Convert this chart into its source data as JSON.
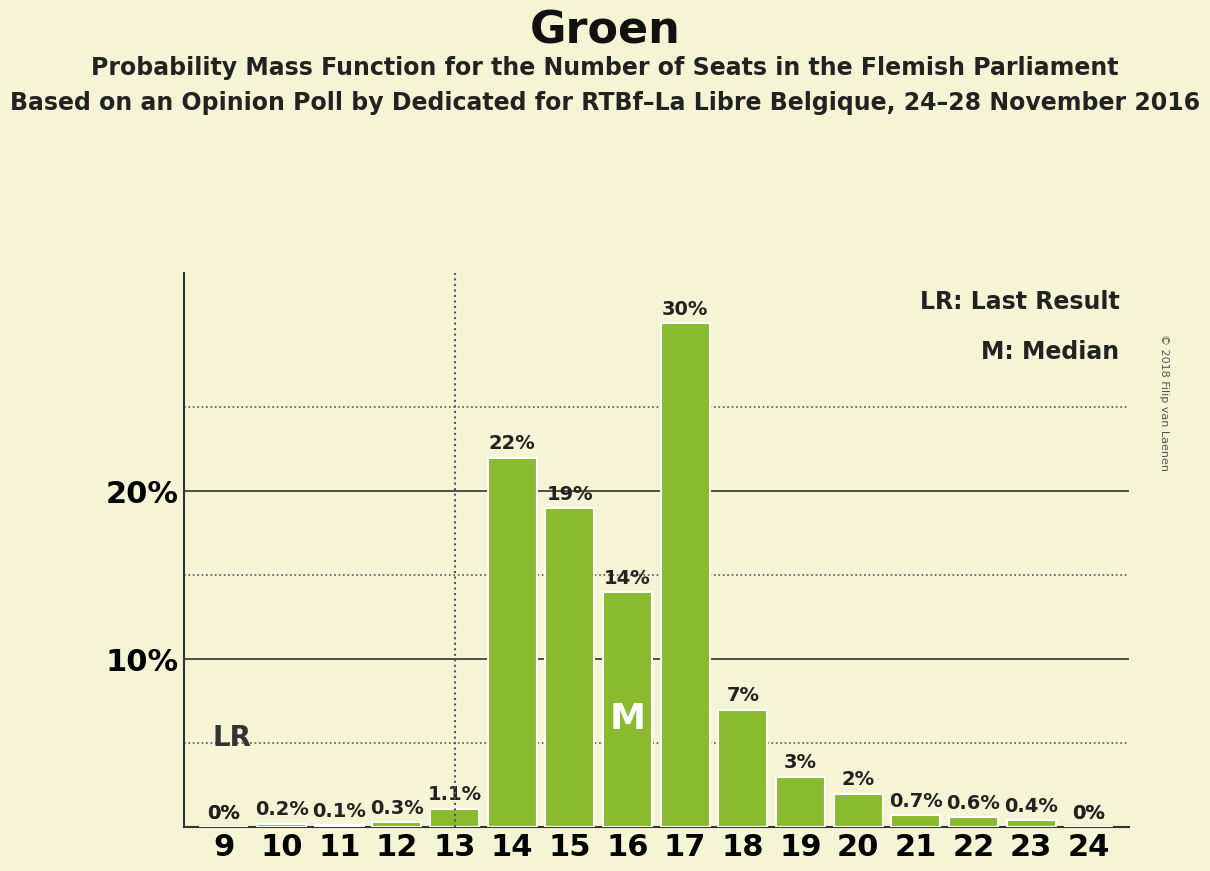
{
  "title": "Groen",
  "subtitle1": "Probability Mass Function for the Number of Seats in the Flemish Parliament",
  "subtitle2": "Based on an Opinion Poll by Dedicated for RTBf–La Libre Belgique, 24–28 November 2016",
  "copyright": "© 2018 Filip van Laenen",
  "seats": [
    9,
    10,
    11,
    12,
    13,
    14,
    15,
    16,
    17,
    18,
    19,
    20,
    21,
    22,
    23,
    24
  ],
  "probabilities": [
    0.0,
    0.2,
    0.1,
    0.3,
    1.1,
    22.0,
    19.0,
    14.0,
    30.0,
    7.0,
    3.0,
    2.0,
    0.7,
    0.6,
    0.4,
    0.0
  ],
  "bar_color": "#8aba2e",
  "bar_edge_color": "#ffffff",
  "background_color": "#f5f5d5",
  "median_seat": 16,
  "lr_seat": 13,
  "legend_lr": "LR: Last Result",
  "legend_m": "M: Median",
  "solid_grid": [
    10,
    20
  ],
  "dotted_grid": [
    5,
    15,
    25
  ],
  "ytick_positions": [
    10,
    20
  ],
  "ytick_labels": [
    "10%",
    "20%"
  ],
  "ymax": 33,
  "title_fontsize": 32,
  "subtitle1_fontsize": 17,
  "subtitle2_fontsize": 17,
  "xtick_fontsize": 22,
  "ytick_fontsize": 22,
  "bar_label_fontsize": 14,
  "legend_fontsize": 17,
  "median_label_fontsize": 26,
  "lr_label_fontsize": 20,
  "copyright_fontsize": 8
}
